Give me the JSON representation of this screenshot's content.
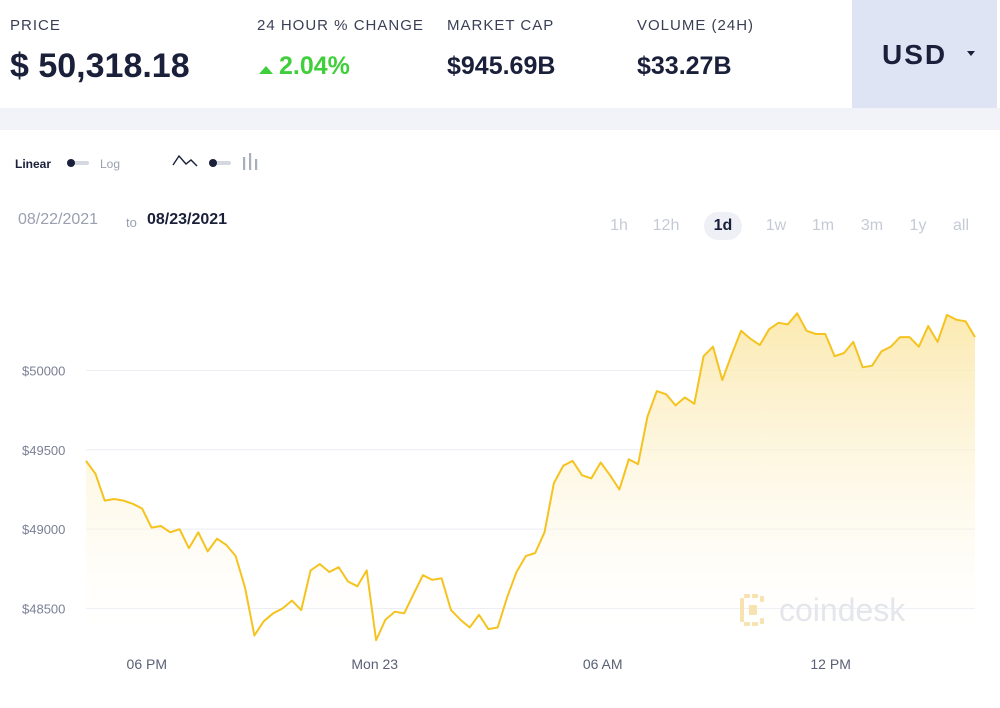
{
  "stats": {
    "price": {
      "label": "PRICE",
      "value": "$ 50,318.18"
    },
    "change": {
      "label": "24 HOUR % CHANGE",
      "value": "2.04%",
      "direction": "up"
    },
    "market_cap": {
      "label": "MARKET CAP",
      "value": "$945.69B"
    },
    "volume": {
      "label": "VOLUME (24H)",
      "value": "$33.27B"
    }
  },
  "currency": {
    "label": "USD"
  },
  "controls": {
    "scale_linear": "Linear",
    "scale_log": "Log",
    "date_from": "08/22/2021",
    "date_to_sep": "to",
    "date_to": "08/23/2021",
    "ranges": [
      "1h",
      "12h",
      "1d",
      "1w",
      "1m",
      "3m",
      "1y",
      "all"
    ],
    "active_range": "1d"
  },
  "watermark": {
    "text": "coindesk"
  },
  "colors": {
    "line": "#f5c320",
    "positive": "#3fcf3a",
    "currency_bg": "#dfe4f5",
    "text_dark": "#1a1f3a"
  },
  "chart_data": {
    "type": "area",
    "y_tick_labels": [
      "$50000",
      "$49500",
      "$49000",
      "$48500"
    ],
    "y_ticks": [
      50000,
      49500,
      49000,
      48500
    ],
    "x_tick_labels": [
      "06 PM",
      "Mon 23",
      "06 AM",
      "12 PM"
    ],
    "x_ticks": [
      1.6,
      7.6,
      13.6,
      19.6
    ],
    "x_unit": "hours since 16:00 Aug 22 (approx)",
    "ylim": [
      48270,
      50570
    ],
    "xlim": [
      0,
      23.4
    ],
    "grid": true,
    "series": [
      {
        "values": [
          49430,
          49350,
          49180,
          49190,
          49180,
          49160,
          49130,
          49010,
          49020,
          48980,
          49000,
          48880,
          48980,
          48860,
          48940,
          48900,
          48830,
          48630,
          48330,
          48420,
          48470,
          48500,
          48550,
          48490,
          48740,
          48780,
          48730,
          48760,
          48670,
          48640,
          48740,
          48300,
          48430,
          48480,
          48470,
          48590,
          48710,
          48680,
          48690,
          48490,
          48430,
          48380,
          48460,
          48370,
          48380,
          48570,
          48730,
          48830,
          48850,
          48980,
          49290,
          49400,
          49430,
          49340,
          49320,
          49420,
          49340,
          49250,
          49440,
          49410,
          49710,
          49870,
          49850,
          49780,
          49830,
          49790,
          50090,
          50150,
          49940,
          50100,
          50250,
          50200,
          50160,
          50260,
          50300,
          50290,
          50360,
          50250,
          50230,
          50230,
          50090,
          50110,
          50180,
          50020,
          50030,
          50120,
          50150,
          50210,
          50210,
          50150,
          50280,
          50180,
          50350,
          50320,
          50310,
          50210
        ]
      }
    ]
  }
}
